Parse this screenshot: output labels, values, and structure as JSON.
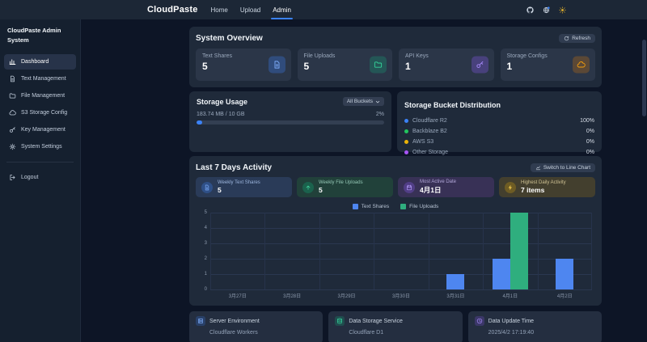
{
  "navbar": {
    "brand": "CloudPaste",
    "links": [
      {
        "label": "Home",
        "active": false
      },
      {
        "label": "Upload",
        "active": false
      },
      {
        "label": "Admin",
        "active": true
      }
    ],
    "icons": [
      {
        "name": "github"
      },
      {
        "name": "language"
      },
      {
        "name": "theme-sun"
      }
    ]
  },
  "sidebar": {
    "title": "CloudPaste Admin System",
    "items": [
      {
        "label": "Dashboard",
        "icon": "chart-bar",
        "active": true
      },
      {
        "label": "Text Management",
        "icon": "document",
        "active": false
      },
      {
        "label": "File Management",
        "icon": "folder",
        "active": false
      },
      {
        "label": "S3 Storage Config",
        "icon": "cloud",
        "active": false
      },
      {
        "label": "Key Management",
        "icon": "key",
        "active": false
      },
      {
        "label": "System Settings",
        "icon": "gear",
        "active": false
      }
    ],
    "logout": {
      "label": "Logout",
      "icon": "logout"
    }
  },
  "overview": {
    "title": "System Overview",
    "refresh_button": "Refresh",
    "stats": [
      {
        "label": "Text Shares",
        "value": "5",
        "icon": "document",
        "accent": "#7caaf8",
        "tint": "rgba(59,130,246,0.30)"
      },
      {
        "label": "File Uploads",
        "value": "5",
        "icon": "folder",
        "accent": "#34d399",
        "tint": "rgba(16,185,129,0.25)"
      },
      {
        "label": "API Keys",
        "value": "1",
        "icon": "key",
        "accent": "#a78bfa",
        "tint": "rgba(139,92,246,0.30)"
      },
      {
        "label": "Storage Configs",
        "value": "1",
        "icon": "cloud",
        "accent": "#f59e0b",
        "tint": "rgba(217,119,6,0.28)"
      }
    ]
  },
  "storage_usage": {
    "title": "Storage Usage",
    "bucket_filter": "All Buckets",
    "usage_text": "183.74 MB / 10 GB",
    "percent_text": "2%",
    "percent": 2,
    "bar_color": "#3b82f6"
  },
  "bucket_distribution": {
    "title": "Storage Bucket Distribution",
    "rows": [
      {
        "label": "Cloudflare R2",
        "value": "100%",
        "color": "#3b82f6"
      },
      {
        "label": "Backblaze B2",
        "value": "0%",
        "color": "#22c55e"
      },
      {
        "label": "AWS S3",
        "value": "0%",
        "color": "#eab308"
      },
      {
        "label": "Other Storage",
        "value": "0%",
        "color": "#a855f7"
      }
    ]
  },
  "activity": {
    "title": "Last 7 Days Activity",
    "switch_button": "Switch to Line Chart",
    "mini_cards": [
      {
        "label": "Weekly Text Shares",
        "value": "5",
        "icon": "document",
        "theme": "blue"
      },
      {
        "label": "Weekly File Uploads",
        "value": "5",
        "icon": "upload",
        "theme": "green"
      },
      {
        "label": "Most Active Date",
        "value": "4月1日",
        "icon": "calendar",
        "theme": "purple"
      },
      {
        "label": "Highest Daily Activity",
        "value": "7 items",
        "icon": "lightning",
        "theme": "amber"
      }
    ],
    "chart_data": {
      "type": "bar",
      "categories": [
        "3月27日",
        "3月28日",
        "3月29日",
        "3月30日",
        "3月31日",
        "4月1日",
        "4月2日"
      ],
      "series": [
        {
          "name": "Text Shares",
          "color": "#4e86f0",
          "values": [
            0,
            0,
            0,
            0,
            1,
            2,
            2
          ]
        },
        {
          "name": "File Uploads",
          "color": "#2fae7e",
          "values": [
            0,
            0,
            0,
            0,
            0,
            5,
            0
          ]
        }
      ],
      "ylim": [
        0,
        5
      ],
      "yticks": [
        0,
        1,
        2,
        3,
        4,
        5
      ],
      "legend_position": "top",
      "grid": true
    }
  },
  "footer_cards": [
    {
      "label": "Server Environment",
      "value": "Cloudflare Workers",
      "icon": "server",
      "accent": "#7caaf8",
      "tint": "rgba(59,130,246,0.22)"
    },
    {
      "label": "Data Storage Service",
      "value": "Cloudflare D1",
      "icon": "database",
      "accent": "#34d399",
      "tint": "rgba(16,185,129,0.22)"
    },
    {
      "label": "Data Update Time",
      "value": "2025/4/2 17:19:40",
      "icon": "clock",
      "accent": "#a78bfa",
      "tint": "rgba(139,92,246,0.22)"
    }
  ]
}
